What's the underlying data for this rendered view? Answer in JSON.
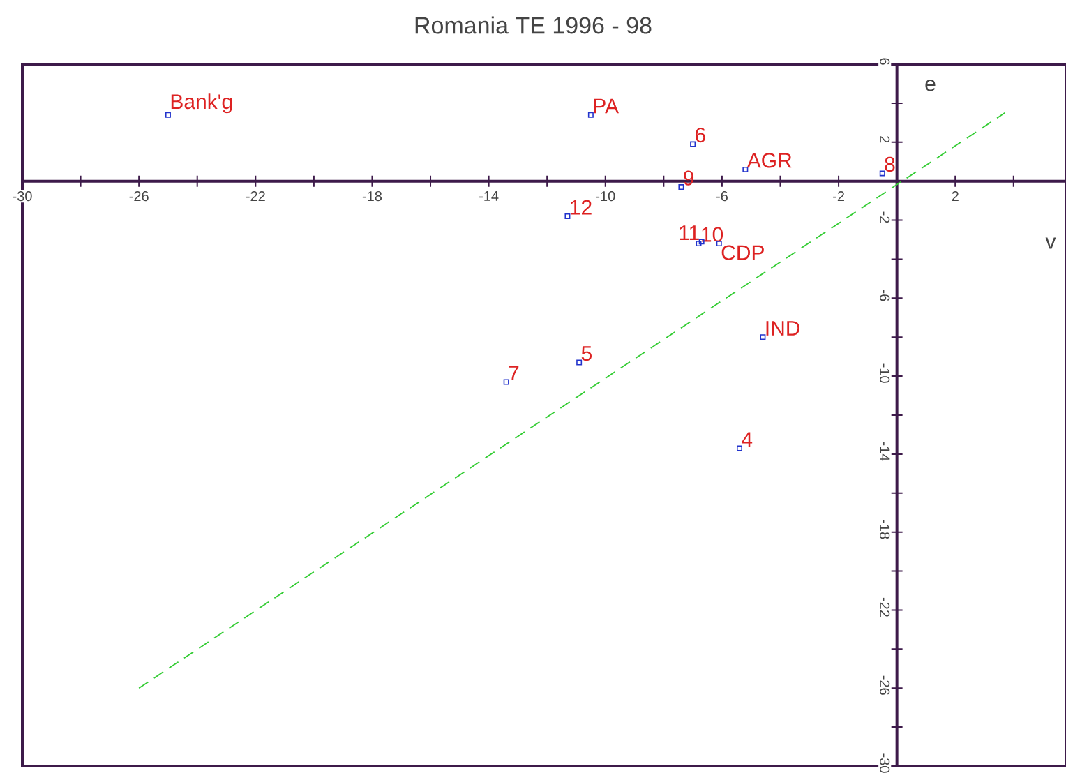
{
  "chart_data": {
    "type": "scatter",
    "title": "Romania TE 1996 - 98",
    "xlabel": "v",
    "ylabel": "e",
    "xlim": [
      -30,
      5.8
    ],
    "ylim": [
      -30,
      6
    ],
    "xticks": [
      -30,
      {
        "value": -28,
        "label": null
      },
      -26,
      {
        "value": -24,
        "label": null
      },
      -22,
      {
        "value": -20,
        "label": null
      },
      -18,
      {
        "value": -16,
        "label": null
      },
      -14,
      {
        "value": -12,
        "label": null
      },
      -10,
      {
        "value": -8,
        "label": null
      },
      -6,
      {
        "value": -4,
        "label": null
      },
      -2,
      2,
      {
        "value": 4,
        "label": null
      }
    ],
    "yticks": [
      6,
      {
        "value": 4,
        "label": null
      },
      2,
      -2,
      {
        "value": -4,
        "label": null
      },
      -6,
      {
        "value": -8,
        "label": null
      },
      -10,
      {
        "value": -12,
        "label": null
      },
      -14,
      {
        "value": -16,
        "label": null
      },
      -18,
      {
        "value": -20,
        "label": null
      },
      -22,
      {
        "value": -24,
        "label": null
      },
      -26,
      {
        "value": -28,
        "label": null
      },
      -30
    ],
    "series": [
      {
        "type": "scatter",
        "color": "#2233cc",
        "marker": "square",
        "x": [
          -25,
          -10.5,
          -7.0,
          -5.2,
          -0.5,
          -7.4,
          -11.3,
          -6.8,
          -6.7,
          -6.1,
          -4.6,
          -10.9,
          -13.4,
          -5.4
        ],
        "values": [
          3.4,
          3.4,
          1.9,
          0.6,
          0.4,
          -0.3,
          -1.8,
          -3.2,
          -3.1,
          -3.2,
          -8.0,
          -9.3,
          -10.3,
          -13.7
        ]
      },
      {
        "type": "line",
        "color": "#33cc33",
        "line_style": "dashed",
        "x": [
          -26,
          3.7
        ],
        "values": [
          -26,
          3.5
        ]
      }
    ],
    "annotations": [
      {
        "text": "Bank'g",
        "x": -25,
        "y": 3.4
      },
      {
        "text": "PA",
        "x": -10.5,
        "y": 3.4
      },
      {
        "text": "6",
        "x": -7.0,
        "y": 1.9
      },
      {
        "text": "AGR",
        "x": -5.2,
        "y": 0.6
      },
      {
        "text": "8",
        "x": -0.5,
        "y": 0.4
      },
      {
        "text": "9",
        "x": -7.4,
        "y": -0.3
      },
      {
        "text": "12",
        "x": -11.3,
        "y": -1.8
      },
      {
        "text": "10",
        "x": -6.8,
        "y": -3.2
      },
      {
        "text": "11",
        "x": -6.7,
        "y": -3.1
      },
      {
        "text": "CDP",
        "x": -6.1,
        "y": -3.2
      },
      {
        "text": "IND",
        "x": -4.6,
        "y": -8.0
      },
      {
        "text": "5",
        "x": -10.9,
        "y": -9.3
      },
      {
        "text": "7",
        "x": -13.4,
        "y": -10.3
      },
      {
        "text": "4",
        "x": -5.4,
        "y": -13.7
      }
    ]
  }
}
